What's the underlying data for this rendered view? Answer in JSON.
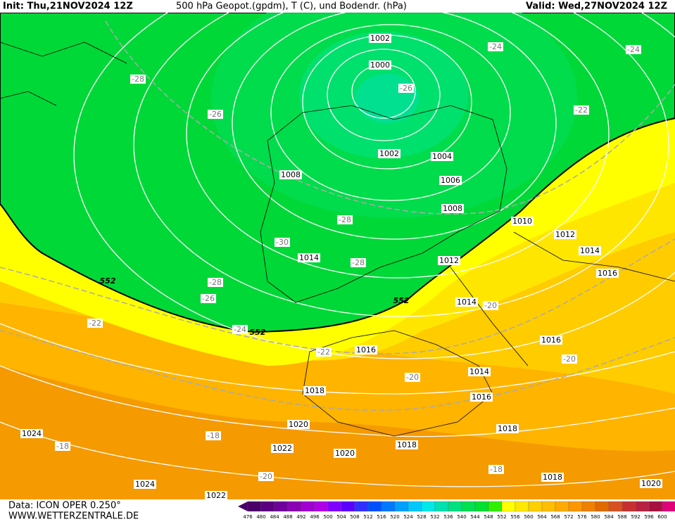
{
  "header": {
    "init": "Init: Thu,21NOV2024 12Z",
    "title": "500 hPa Geopot.(gpdm), T (C), und Bodendr. (hPa)",
    "valid": "Valid: Wed,27NOV2024 12Z"
  },
  "footer": {
    "data": "Data: ICON OPER 0.250°",
    "url": "WWW.WETTERZENTRALE.DE"
  },
  "colorbar": {
    "labels": [
      "476",
      "480",
      "484",
      "488",
      "492",
      "496",
      "500",
      "504",
      "508",
      "512",
      "516",
      "520",
      "524",
      "528",
      "532",
      "536",
      "540",
      "544",
      "548",
      "552",
      "556",
      "560",
      "564",
      "568",
      "572",
      "576",
      "580",
      "584",
      "588",
      "592",
      "596",
      "600"
    ]
  },
  "map": {
    "isobar_labels": [
      "1002",
      "1000",
      "1002",
      "1004",
      "1006",
      "1008",
      "1008",
      "1010",
      "1012",
      "1014",
      "1016",
      "1014",
      "1012",
      "1014",
      "1016",
      "1016",
      "1014",
      "1016",
      "1018",
      "1018",
      "1020",
      "1018",
      "1022",
      "1020",
      "1024",
      "1024",
      "1022",
      "1018",
      "1020"
    ],
    "temperature_labels": [
      "-24",
      "-24",
      "-28",
      "-26",
      "-22",
      "-26",
      "-28",
      "-30",
      "-28",
      "-28",
      "-26",
      "-20",
      "-22",
      "-24",
      "-22",
      "-20",
      "-20",
      "-18",
      "-18",
      "-18",
      "-20"
    ],
    "height_labels": [
      "552",
      "552",
      "552"
    ]
  }
}
